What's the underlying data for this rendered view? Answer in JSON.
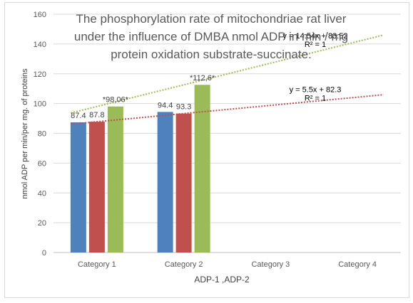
{
  "chart_data": {
    "type": "bar",
    "title": [
      "The phosphorylation rate of mitochondriae rat liver",
      "under the influence of DMBA nmol ADP in min / mg",
      "protein  oxidation substrate-succinate."
    ],
    "xlabel": "ADP-1  ,ADP-2",
    "ylabel": "nmol ADP per min/per mg. of proteins",
    "ylim": [
      0,
      160
    ],
    "yticks": [
      0,
      20,
      40,
      60,
      80,
      100,
      120,
      140,
      160
    ],
    "categories": [
      "Category 1",
      "Category 2",
      "Category 3",
      "Category 4"
    ],
    "grid": true,
    "legend": "none",
    "series": [
      {
        "values": [
          87.4,
          94.4,
          null,
          null
        ],
        "labels": [
          "87.4",
          "94.4",
          "",
          ""
        ],
        "color": "#4f81bd"
      },
      {
        "values": [
          87.8,
          93.3,
          null,
          null
        ],
        "labels": [
          "87.8",
          "93.3",
          "",
          ""
        ],
        "color": "#c0504d"
      },
      {
        "values": [
          98.06,
          112.6,
          null,
          null
        ],
        "labels": [
          "*98,06*",
          "*112,6*",
          "",
          ""
        ],
        "color": "#9bbb59"
      }
    ],
    "trendlines": [
      {
        "series_index": 2,
        "color": "#9bbb59",
        "slope": 14.54,
        "intercept": 83.52,
        "x_from": 0.7,
        "x_to": 4.3,
        "equation": "y = 14.54x + 83.52",
        "r2": "R² = 1"
      },
      {
        "series_index": 1,
        "color": "#c0504d",
        "slope": 5.5,
        "intercept": 82.3,
        "x_from": 0.7,
        "x_to": 4.3,
        "equation": "y = 5.5x + 82.3",
        "r2": "R² = 1"
      }
    ]
  }
}
